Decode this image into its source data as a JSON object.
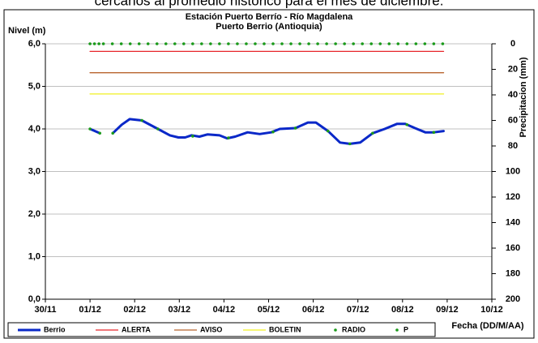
{
  "caption": "cercanos al promedio histórico para el mes de diciembre.",
  "chart_data": {
    "type": "line",
    "title": "Estación Puerto Berrío - Río Magdalena",
    "subtitle": "Puerto Berrio (Antioquia)",
    "y_label": "Nivel (m)",
    "y2_label": "Precipitacion (mm)",
    "x_label": "Fecha (DD/M/AA)",
    "xlim": [
      0,
      10
    ],
    "xticks": [
      {
        "value": 0,
        "label": "30/11"
      },
      {
        "value": 1,
        "label": "01/12"
      },
      {
        "value": 2,
        "label": "02/12"
      },
      {
        "value": 3,
        "label": "03/12"
      },
      {
        "value": 4,
        "label": "04/12"
      },
      {
        "value": 5,
        "label": "05/12"
      },
      {
        "value": 6,
        "label": "06/12"
      },
      {
        "value": 7,
        "label": "07/12"
      },
      {
        "value": 8,
        "label": "08/12"
      },
      {
        "value": 9,
        "label": "09/12"
      },
      {
        "value": 10,
        "label": "10/12"
      }
    ],
    "ylim": [
      0,
      6
    ],
    "yticks": [
      {
        "value": 0,
        "label": "0,0"
      },
      {
        "value": 1,
        "label": "1,0"
      },
      {
        "value": 2,
        "label": "2,0"
      },
      {
        "value": 3,
        "label": "3,0"
      },
      {
        "value": 4,
        "label": "4,0"
      },
      {
        "value": 5,
        "label": "5,0"
      },
      {
        "value": 6,
        "label": "6,0"
      }
    ],
    "y2lim": [
      200,
      0
    ],
    "y2ticks": [
      0,
      20,
      40,
      60,
      80,
      100,
      120,
      140,
      160,
      180,
      200
    ],
    "grid": true,
    "series": [
      {
        "name": "Berrio",
        "color": "#0a28c8",
        "style": "line",
        "width": 3,
        "x": [
          1.0,
          1.22,
          1.35,
          1.51,
          1.71,
          1.89,
          2.16,
          2.52,
          2.79,
          2.98,
          3.13,
          3.27,
          3.45,
          3.63,
          3.9,
          4.07,
          4.25,
          4.53,
          4.8,
          5.06,
          5.25,
          5.6,
          5.88,
          6.06,
          6.33,
          6.6,
          6.82,
          7.05,
          7.33,
          7.6,
          7.88,
          8.06,
          8.28,
          8.51,
          8.7,
          8.92
        ],
        "values": [
          4.0,
          3.9,
          null,
          3.9,
          4.1,
          4.23,
          4.2,
          4.0,
          3.85,
          3.8,
          3.8,
          3.85,
          3.82,
          3.87,
          3.85,
          3.78,
          3.82,
          3.92,
          3.88,
          3.92,
          4.0,
          4.02,
          4.15,
          4.15,
          3.95,
          3.68,
          3.65,
          3.68,
          3.9,
          4.0,
          4.12,
          4.12,
          4.02,
          3.92,
          3.92,
          3.95
        ]
      },
      {
        "name": "ALERTA",
        "color": "#e8262a",
        "style": "line",
        "width": 1.3,
        "x": [
          1.0,
          8.92
        ],
        "values": [
          5.82,
          5.82
        ]
      },
      {
        "name": "AVISO",
        "color": "#b8642e",
        "style": "line",
        "width": 1.3,
        "x": [
          1.0,
          8.92
        ],
        "values": [
          5.32,
          5.32
        ]
      },
      {
        "name": "BOLETIN",
        "color": "#f0f020",
        "style": "line",
        "width": 1.3,
        "x": [
          1.0,
          8.92
        ],
        "values": [
          4.82,
          4.82
        ]
      },
      {
        "name": "RADIO",
        "color": "#1a9a1a",
        "style": "dots",
        "x": [
          1.0,
          1.22,
          1.51,
          2.16,
          2.52,
          3.3,
          4.1,
          5.1,
          5.6,
          6.33,
          6.82,
          7.33,
          8.1,
          8.7
        ],
        "values": [
          4.0,
          3.9,
          3.9,
          4.2,
          4.0,
          3.83,
          3.79,
          3.93,
          4.02,
          3.95,
          3.65,
          3.9,
          4.1,
          3.92
        ]
      },
      {
        "name": "P",
        "color": "#1a9a1a",
        "style": "dots",
        "axis": "y2",
        "x": [
          1.0,
          1.1,
          1.2,
          1.3,
          1.5,
          1.7,
          1.9,
          2.1,
          2.3,
          2.5,
          2.7,
          2.9,
          3.1,
          3.3,
          3.5,
          3.7,
          3.9,
          4.1,
          4.3,
          4.5,
          4.7,
          4.9,
          5.1,
          5.3,
          5.5,
          5.7,
          5.9,
          6.1,
          6.3,
          6.5,
          6.7,
          6.9,
          7.1,
          7.3,
          7.5,
          7.7,
          7.9,
          8.1,
          8.3,
          8.5,
          8.7,
          8.9
        ],
        "values": [
          0,
          0,
          0,
          0,
          0,
          0,
          0,
          0,
          0,
          0,
          0,
          0,
          0,
          0,
          0,
          0,
          0,
          0,
          0,
          0,
          0,
          0,
          0,
          0,
          0,
          0,
          0,
          0,
          0,
          0,
          0,
          0,
          0,
          0,
          0,
          0,
          0,
          0,
          0,
          0,
          0,
          0
        ]
      }
    ]
  }
}
